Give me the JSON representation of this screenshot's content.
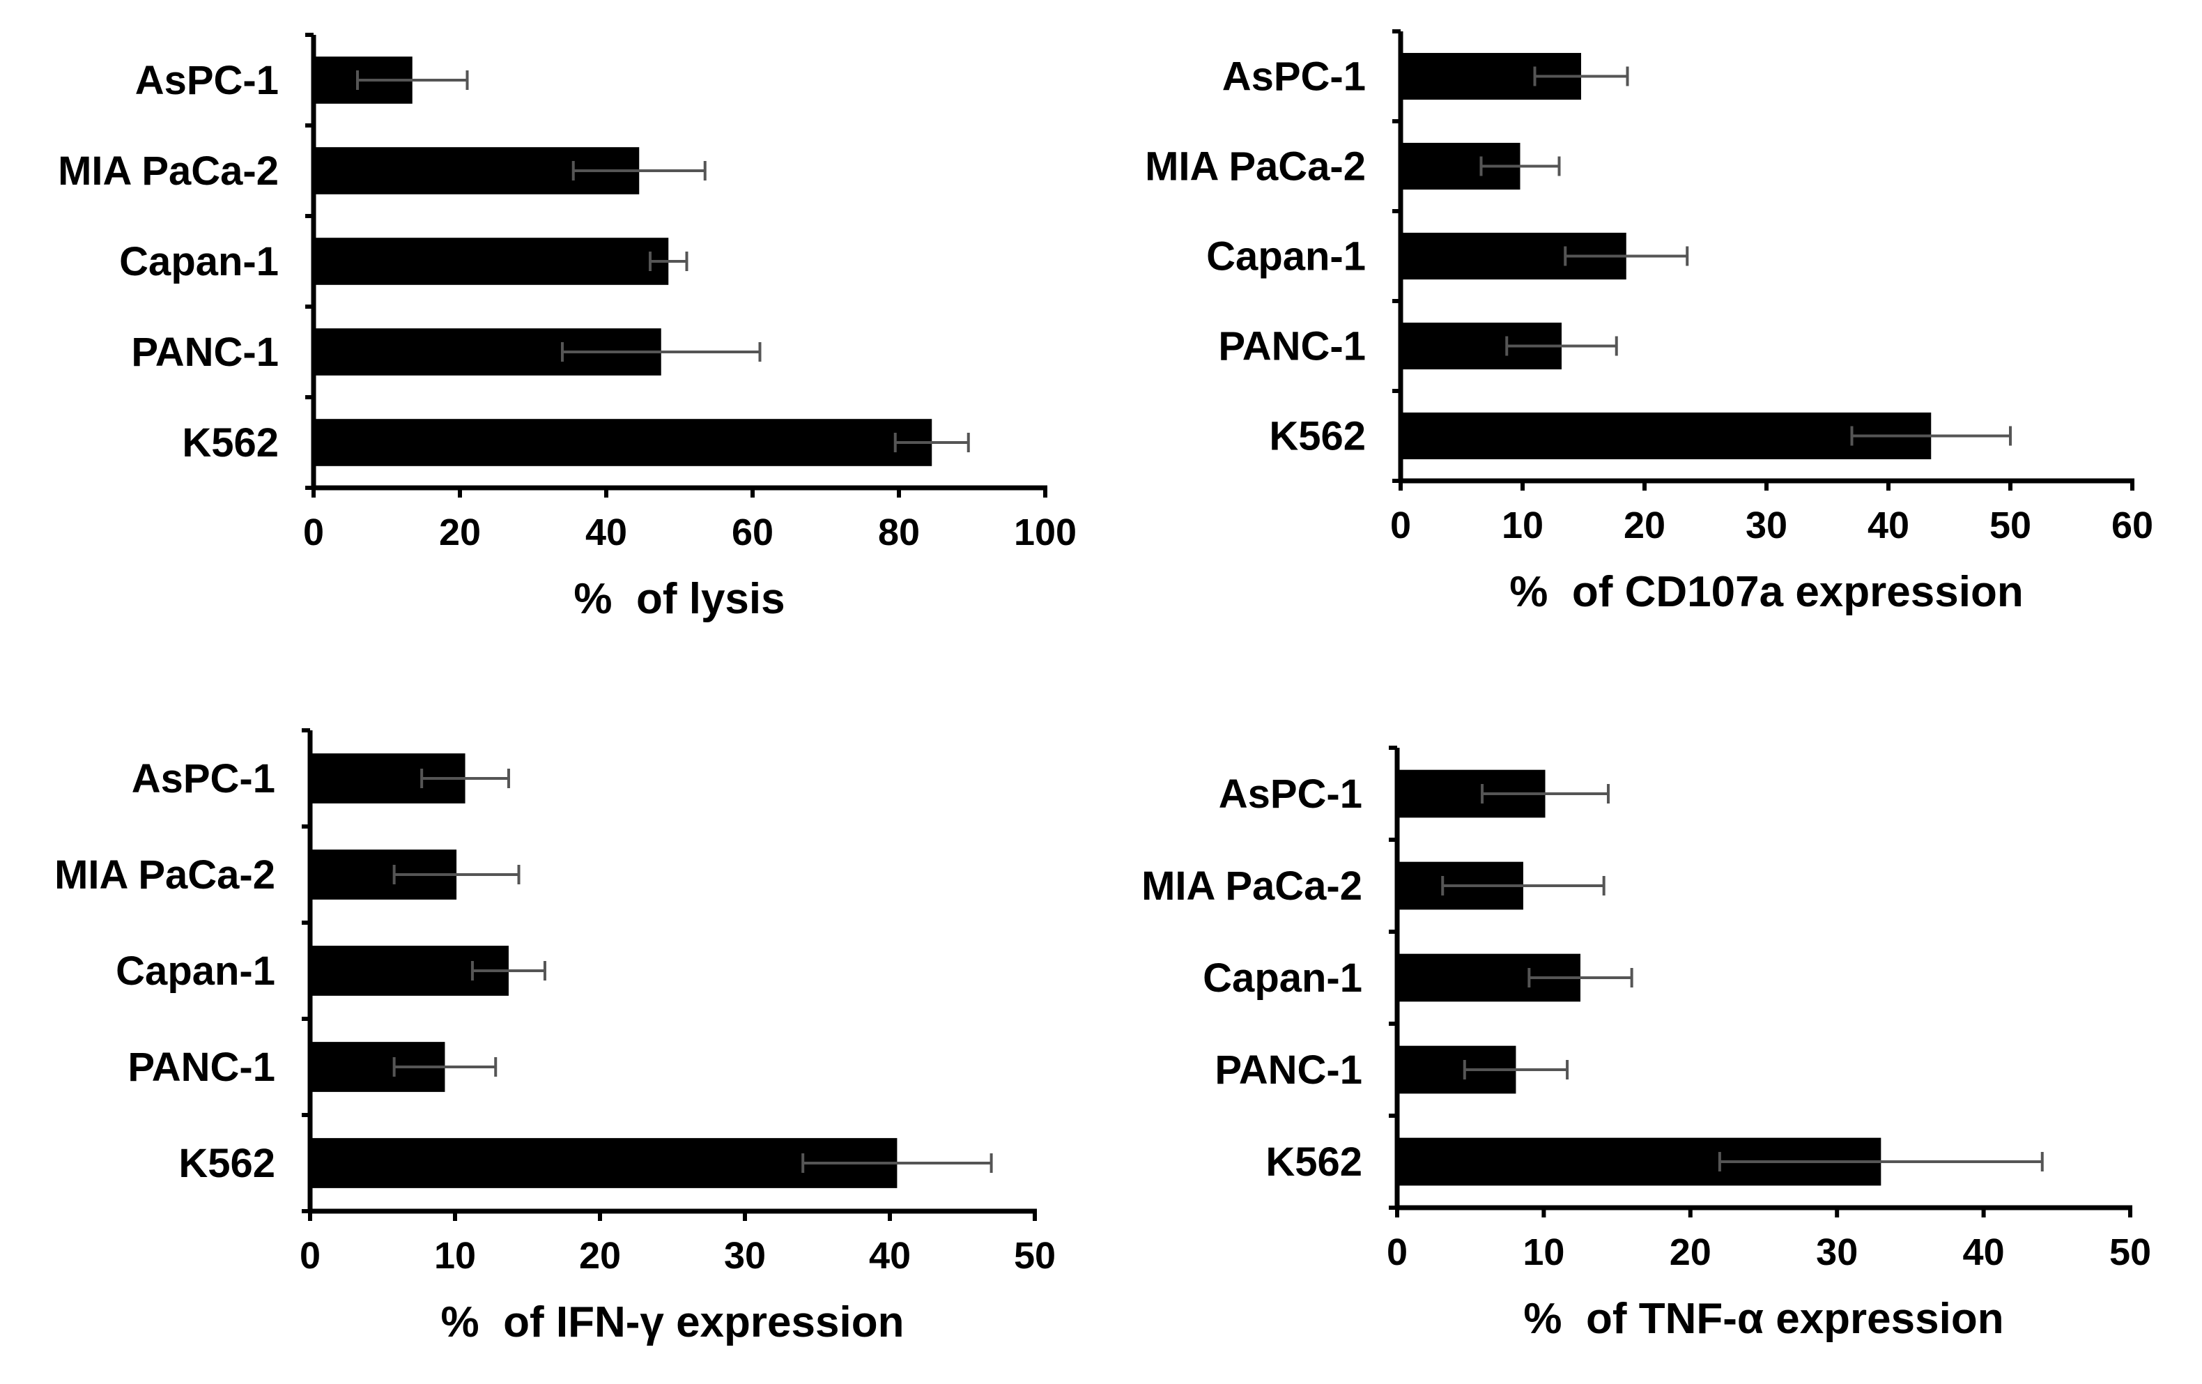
{
  "chart_data": [
    {
      "type": "bar",
      "orientation": "horizontal",
      "categories": [
        "AsPC-1",
        "MIA PaCa-2",
        "Capan-1",
        "PANC-1",
        "K562"
      ],
      "values": [
        13.5,
        44.5,
        48.5,
        47.5,
        84.5
      ],
      "errors": [
        7.5,
        9,
        2.5,
        13.5,
        5
      ],
      "xlim": [
        0,
        100
      ],
      "ticks": [
        "0",
        "20",
        "40",
        "60",
        "80",
        "100"
      ],
      "xlabel": "%  of lysis",
      "ylabel": "",
      "title": "",
      "bar_color": "#000000",
      "error_color": "#555555"
    },
    {
      "type": "bar",
      "orientation": "horizontal",
      "categories": [
        "AsPC-1",
        "MIA PaCa-2",
        "Capan-1",
        "PANC-1",
        "K562"
      ],
      "values": [
        14.8,
        9.8,
        18.5,
        13.2,
        43.5
      ],
      "errors": [
        3.8,
        3.2,
        5,
        4.5,
        6.5
      ],
      "xlim": [
        0,
        60
      ],
      "ticks": [
        "0",
        "10",
        "20",
        "30",
        "40",
        "50",
        "60"
      ],
      "xlabel": "%  of CD107a expression",
      "ylabel": "",
      "title": "",
      "bar_color": "#000000",
      "error_color": "#555555"
    },
    {
      "type": "bar",
      "orientation": "horizontal",
      "categories": [
        "AsPC-1",
        "MIA PaCa-2",
        "Capan-1",
        "PANC-1",
        "K562"
      ],
      "values": [
        10.7,
        10.1,
        13.7,
        9.3,
        40.5
      ],
      "errors": [
        3,
        4.3,
        2.5,
        3.5,
        6.5
      ],
      "xlim": [
        0,
        50
      ],
      "ticks": [
        "0",
        "10",
        "20",
        "30",
        "40",
        "50"
      ],
      "xlabel": "%  of IFN-γ expression",
      "ylabel": "",
      "title": "",
      "bar_color": "#000000",
      "error_color": "#555555"
    },
    {
      "type": "bar",
      "orientation": "horizontal",
      "categories": [
        "AsPC-1",
        "MIA PaCa-2",
        "Capan-1",
        "PANC-1",
        "K562"
      ],
      "values": [
        10.1,
        8.6,
        12.5,
        8.1,
        33
      ],
      "errors": [
        4.3,
        5.5,
        3.5,
        3.5,
        11
      ],
      "xlim": [
        0,
        50
      ],
      "ticks": [
        "0",
        "10",
        "20",
        "30",
        "40",
        "50"
      ],
      "xlabel": "%  of TNF-α expression",
      "ylabel": "",
      "title": "",
      "bar_color": "#000000",
      "error_color": "#555555"
    }
  ]
}
